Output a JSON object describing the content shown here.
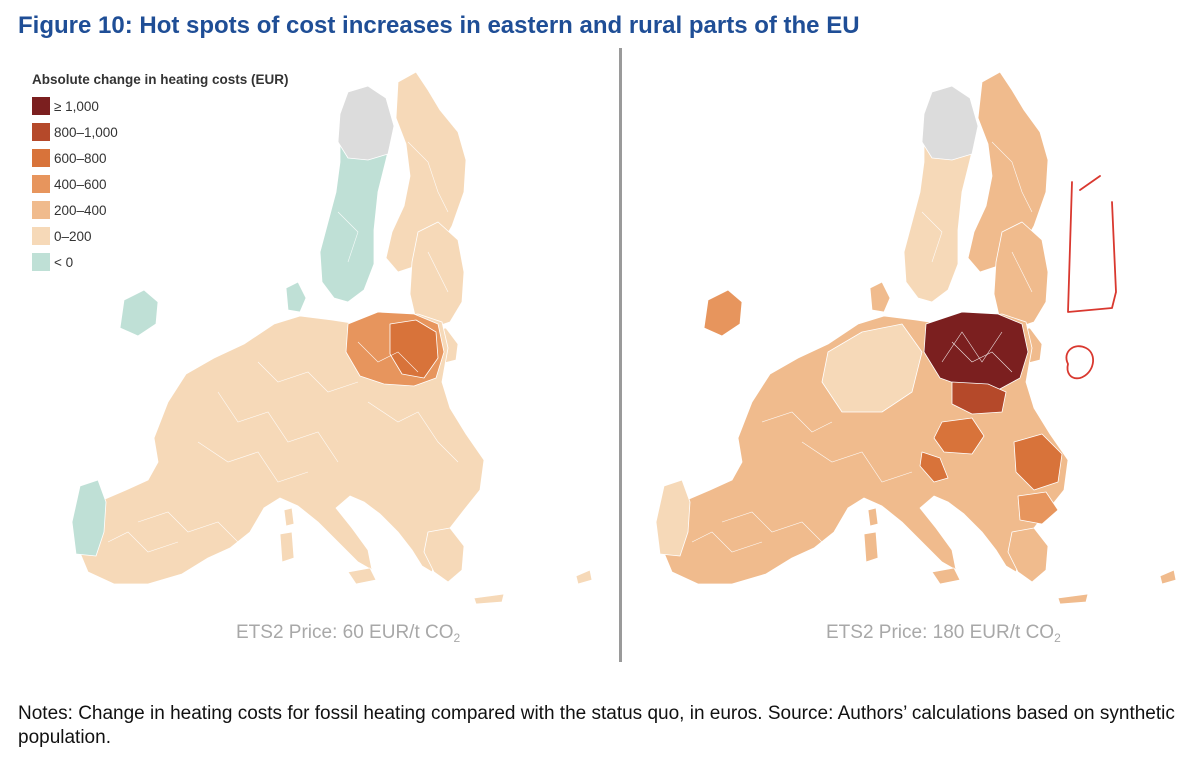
{
  "figure": {
    "title": "Figure 10: Hot spots of cost increases in eastern and rural parts of the EU"
  },
  "legend": {
    "title": "Absolute change in heating costs (EUR)",
    "items": [
      {
        "label": "≥ 1,000",
        "color": "#7b1f1f"
      },
      {
        "label": "800–1,000",
        "color": "#b5492a"
      },
      {
        "label": "600–800",
        "color": "#d8733a"
      },
      {
        "label": "400–600",
        "color": "#e7955d"
      },
      {
        "label": "200–400",
        "color": "#f0bb8d"
      },
      {
        "label": "0–200",
        "color": "#f6d9b8"
      },
      {
        "label": "< 0",
        "color": "#bfe0d6"
      }
    ],
    "no_data_color": "#dcdcdc"
  },
  "maps": [
    {
      "price_text": "ETS2 Price: 60 EUR/t CO",
      "price_sub": "2"
    },
    {
      "price_text": "ETS2 Price: 180 EUR/t CO",
      "price_sub": "2"
    }
  ],
  "notes": {
    "text": "Notes: Change in heating costs for fossil heating compared with the status quo, in euros.",
    "source": "Source: Authors’ calculations based on synthetic population."
  },
  "annotation": {
    "stroke_color": "#d9382f"
  }
}
